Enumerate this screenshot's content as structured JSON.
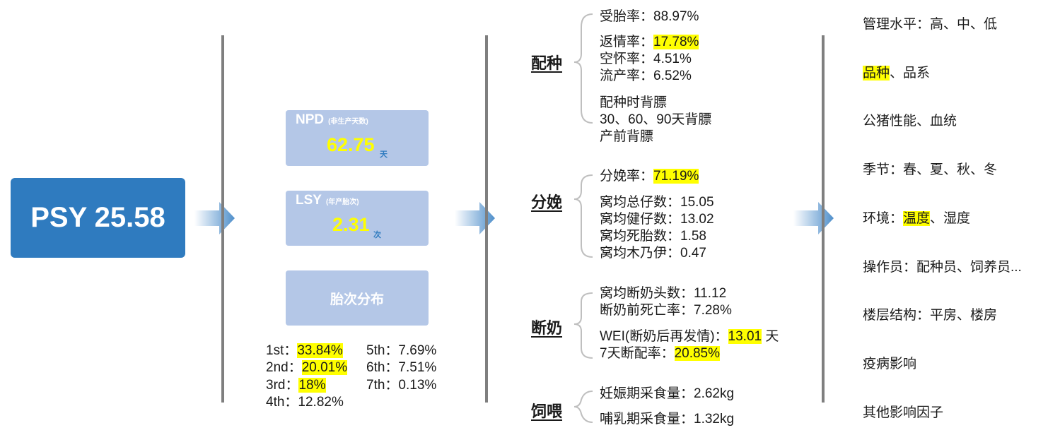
{
  "psy": {
    "label": "PSY 25.58"
  },
  "npd": {
    "title": "NPD",
    "subtitle": "(非生产天数)",
    "value": "62.75",
    "unit": "天"
  },
  "lsy": {
    "title": "LSY",
    "subtitle": "(年产胎次)",
    "value": "2.31",
    "unit": "次"
  },
  "parity": {
    "button": "胎次分布",
    "items": [
      {
        "label": "1st：",
        "value": "33.84%",
        "highlight": true
      },
      {
        "label": "2nd：",
        "value": "20.01%",
        "highlight": true
      },
      {
        "label": "3rd：",
        "value": "18%",
        "highlight": true
      },
      {
        "label": "4th：",
        "value": "12.82%",
        "highlight": false
      },
      {
        "label": "5th：",
        "value": "7.69%",
        "highlight": false
      },
      {
        "label": "6th：",
        "value": "7.51%",
        "highlight": false
      },
      {
        "label": "7th：",
        "value": "0.13%",
        "highlight": false
      }
    ]
  },
  "breeding": {
    "title": "配种",
    "conception": {
      "label": "受胎率：",
      "value": "88.97%"
    },
    "return": {
      "label": "返情率：",
      "value": "17.78%"
    },
    "empty": {
      "label": "空怀率：",
      "value": "4.51%"
    },
    "abortion": {
      "label": "流产率：",
      "value": "6.52%"
    },
    "backfat1": "配种时背膘",
    "backfat2": "30、60、90天背膘",
    "backfat3": "产前背膘"
  },
  "farrowing": {
    "title": "分娩",
    "rate": {
      "label": "分娩率：",
      "value": "71.19%"
    },
    "total": "窝均总仔数：15.05",
    "healthy": "窝均健仔数：13.02",
    "stillborn": "窝均死胎数：1.58",
    "mummy": "窝均木乃伊：0.47"
  },
  "weaning": {
    "title": "断奶",
    "weaned": "窝均断奶头数：11.12",
    "preweaning_mortality": "断奶前死亡率：7.28%",
    "wei": {
      "label": "WEI(断奶后再发情)：",
      "value": "13.01",
      "unit": " 天"
    },
    "breed7": {
      "label": "7天断配率：",
      "value": "20.85%"
    }
  },
  "feeding": {
    "title": "饲喂",
    "gestation": "妊娠期采食量：2.62kg",
    "lactation": "哺乳期采食量：1.32kg"
  },
  "factors": {
    "management": "管理水平：高、中、低",
    "breed": {
      "highlight": "品种",
      "rest": "、品系"
    },
    "boar": "公猪性能、血统",
    "season": "季节：春、夏、秋、冬",
    "environment": {
      "label": "环境：",
      "highlight": "温度",
      "rest": "、湿度"
    },
    "operators": "操作员：配种员、饲养员...",
    "building": "楼层结构：平房、楼房",
    "disease": "疫病影响",
    "other": "其他影响因子"
  },
  "colors": {
    "accent": "#2f7bbf",
    "card": "#b4c7e7",
    "highlight": "#ffff00",
    "divider": "#7f7f7f"
  }
}
